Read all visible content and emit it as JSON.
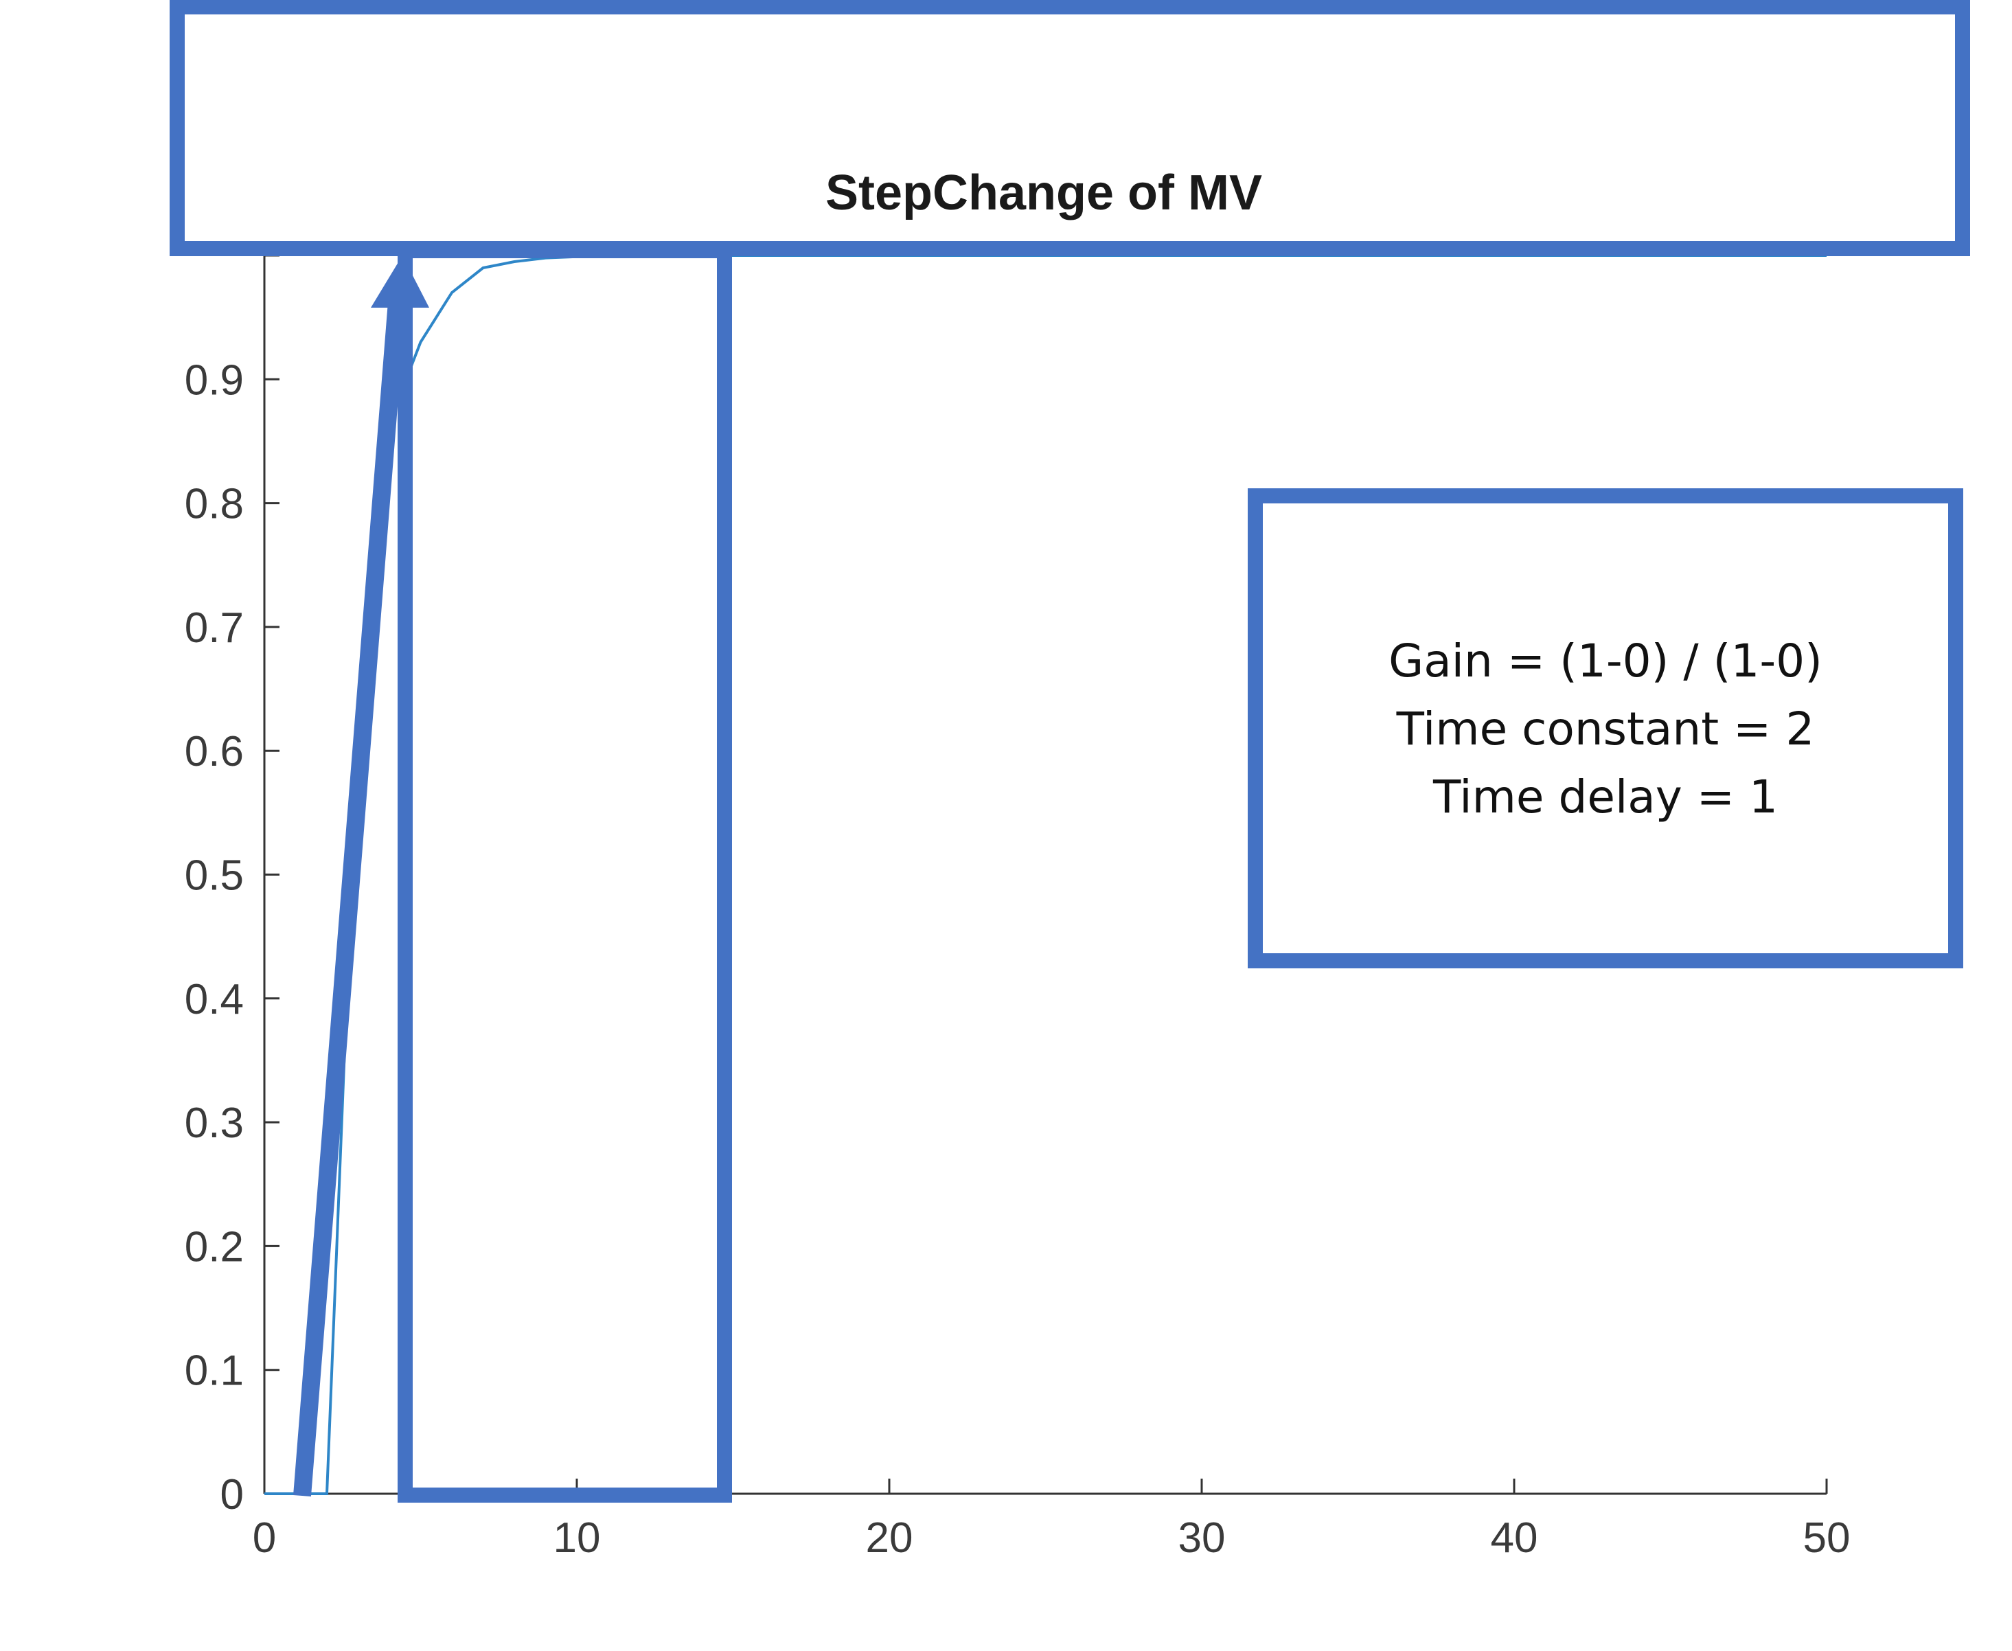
{
  "chart_data": {
    "type": "line",
    "title": "StepChange of MV",
    "xlabel": "",
    "ylabel": "",
    "xlim": [
      0,
      50
    ],
    "ylim": [
      0,
      1
    ],
    "xticks": [
      0,
      10,
      20,
      30,
      40,
      50
    ],
    "yticks": [
      0,
      0.1,
      0.2,
      0.3,
      0.4,
      0.5,
      0.6,
      0.7,
      0.8,
      0.9,
      1
    ],
    "x_tick_labels": [
      "0",
      "10",
      "20",
      "30",
      "40",
      "50"
    ],
    "y_tick_labels": [
      "0",
      "0.1",
      "0.2",
      "0.3",
      "0.4",
      "0.5",
      "0.6",
      "0.7",
      "0.8",
      "0.9",
      ""
    ],
    "grid": false,
    "series": [
      {
        "color": "#2E86C8",
        "x": [
          0,
          1,
          2,
          3,
          4,
          5,
          6,
          7,
          8,
          9,
          10,
          11,
          12,
          14,
          16,
          20,
          25,
          30,
          35,
          40,
          45,
          50
        ],
        "y": [
          0,
          0,
          0,
          0.63,
          0.865,
          0.93,
          0.97,
          0.99,
          0.995,
          0.998,
          0.999,
          1,
          1,
          1,
          1,
          1,
          1,
          1,
          1,
          1,
          1,
          1
        ]
      }
    ],
    "annotation": {
      "lines": [
        "Gain = (1-0) / (1-0)",
        "Time constant = 2",
        "Time delay = 1"
      ]
    },
    "highlight_color": "#4472C4"
  }
}
